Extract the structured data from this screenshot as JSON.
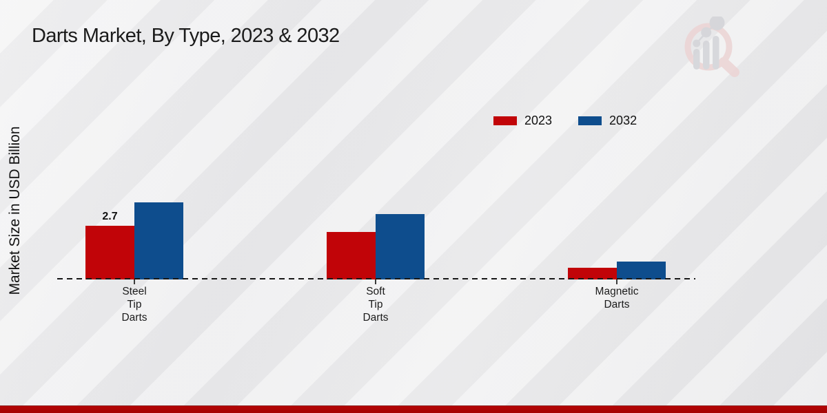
{
  "title": "Darts Market, By Type, 2023 & 2032",
  "ylabel": "Market Size in USD Billion",
  "watermark": {
    "icon": "market-research-magnifier-bars-logo",
    "circle_color": "#ecd4d4",
    "bar_color": "#d3d4d8"
  },
  "footer": {
    "bar_color": "#b50404"
  },
  "legend": {
    "position": "top-right",
    "items": [
      {
        "label": "2023",
        "color": "#c10408"
      },
      {
        "label": "2032",
        "color": "#0e4d8d"
      }
    ]
  },
  "chart_data": {
    "type": "bar",
    "title": "Darts Market, By Type, 2023 & 2032",
    "xlabel": "",
    "ylabel": "Market Size in USD Billion",
    "categories": [
      "Steel Tip Darts",
      "Soft Tip Darts",
      "Magnetic Darts"
    ],
    "category_lines": [
      [
        "Steel",
        "Tip",
        "Darts"
      ],
      [
        "Soft",
        "Tip",
        "Darts"
      ],
      [
        "Magnetic",
        "Darts"
      ]
    ],
    "series": [
      {
        "name": "2023",
        "color": "#c10408",
        "values": [
          2.7,
          2.4,
          0.6
        ]
      },
      {
        "name": "2032",
        "color": "#0e4d8d",
        "values": [
          3.9,
          3.3,
          0.9
        ]
      }
    ],
    "data_labels": [
      {
        "series": "2023",
        "category": "Steel Tip Darts",
        "text": "2.7"
      }
    ],
    "ylim": [
      0,
      4.5
    ],
    "grid": false,
    "legend_position": "top-right",
    "baseline_style": "dashed"
  }
}
